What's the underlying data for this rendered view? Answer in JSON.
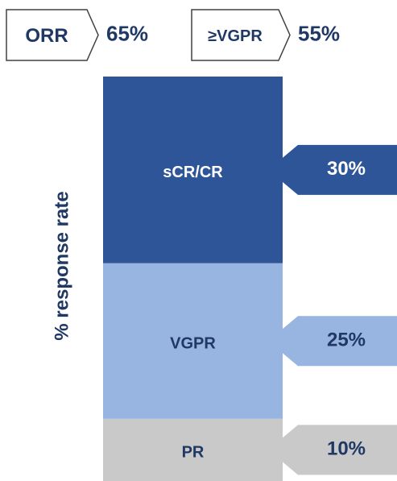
{
  "chart_data": {
    "type": "bar",
    "stacked": true,
    "ylabel": "% response rate",
    "annotations": [
      {
        "label": "ORR",
        "value": "65%"
      },
      {
        "label": "≥VGPR",
        "value": "55%"
      }
    ],
    "categories": [
      null
    ],
    "series": [
      {
        "name": "PR",
        "color": "#c9c9c9",
        "text_color": "#1f3864",
        "values": [
          10
        ],
        "value_labels": [
          "10%"
        ]
      },
      {
        "name": "VGPR",
        "color": "#98b4e0",
        "text_color": "#1f3864",
        "values": [
          25
        ],
        "value_labels": [
          "25%"
        ]
      },
      {
        "name": "sCR/CR",
        "color": "#2e5597",
        "text_color": "#ffffff",
        "values": [
          30
        ],
        "value_labels": [
          "30%"
        ]
      }
    ],
    "ylim": [
      0,
      65
    ]
  }
}
